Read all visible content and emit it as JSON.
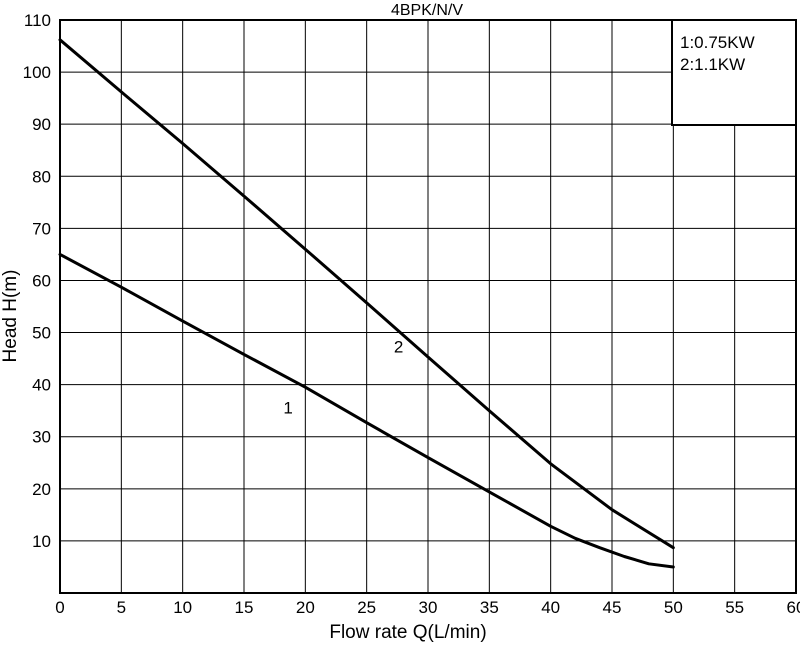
{
  "chart_data": {
    "type": "line",
    "title": "4BPK/N/V",
    "xlabel": "Flow rate Q(L/min)",
    "ylabel": "Head H(m)",
    "xlim": [
      0,
      60
    ],
    "ylim": [
      0,
      110
    ],
    "xticks": [
      0,
      5,
      10,
      15,
      20,
      25,
      30,
      35,
      40,
      45,
      50,
      55,
      60
    ],
    "yticks": [
      10,
      20,
      30,
      40,
      50,
      60,
      70,
      80,
      90,
      100,
      110
    ],
    "grid": true,
    "legend": {
      "placement": "top-right",
      "entries": [
        "1:0.75KW",
        "2:1.1KW"
      ]
    },
    "series": [
      {
        "label": "1",
        "x": [
          0,
          5,
          10,
          15,
          20,
          25,
          30,
          35,
          40,
          42,
          44,
          46,
          48,
          50
        ],
        "y": [
          65,
          58.7,
          52.2,
          45.8,
          39.5,
          32.7,
          26,
          19.4,
          12.8,
          10.5,
          8.7,
          7,
          5.6,
          5
        ]
      },
      {
        "label": "2",
        "x": [
          0,
          5,
          10,
          15,
          20,
          25,
          30,
          35,
          40,
          45,
          50
        ],
        "y": [
          106.2,
          96.2,
          86.3,
          76.2,
          66,
          55.7,
          45.3,
          35,
          24.8,
          16,
          8.7
        ]
      }
    ],
    "annotations": [
      {
        "text": "1",
        "x": 18.6,
        "y": 34.5
      },
      {
        "text": "2",
        "x": 27.6,
        "y": 46.2
      }
    ]
  }
}
